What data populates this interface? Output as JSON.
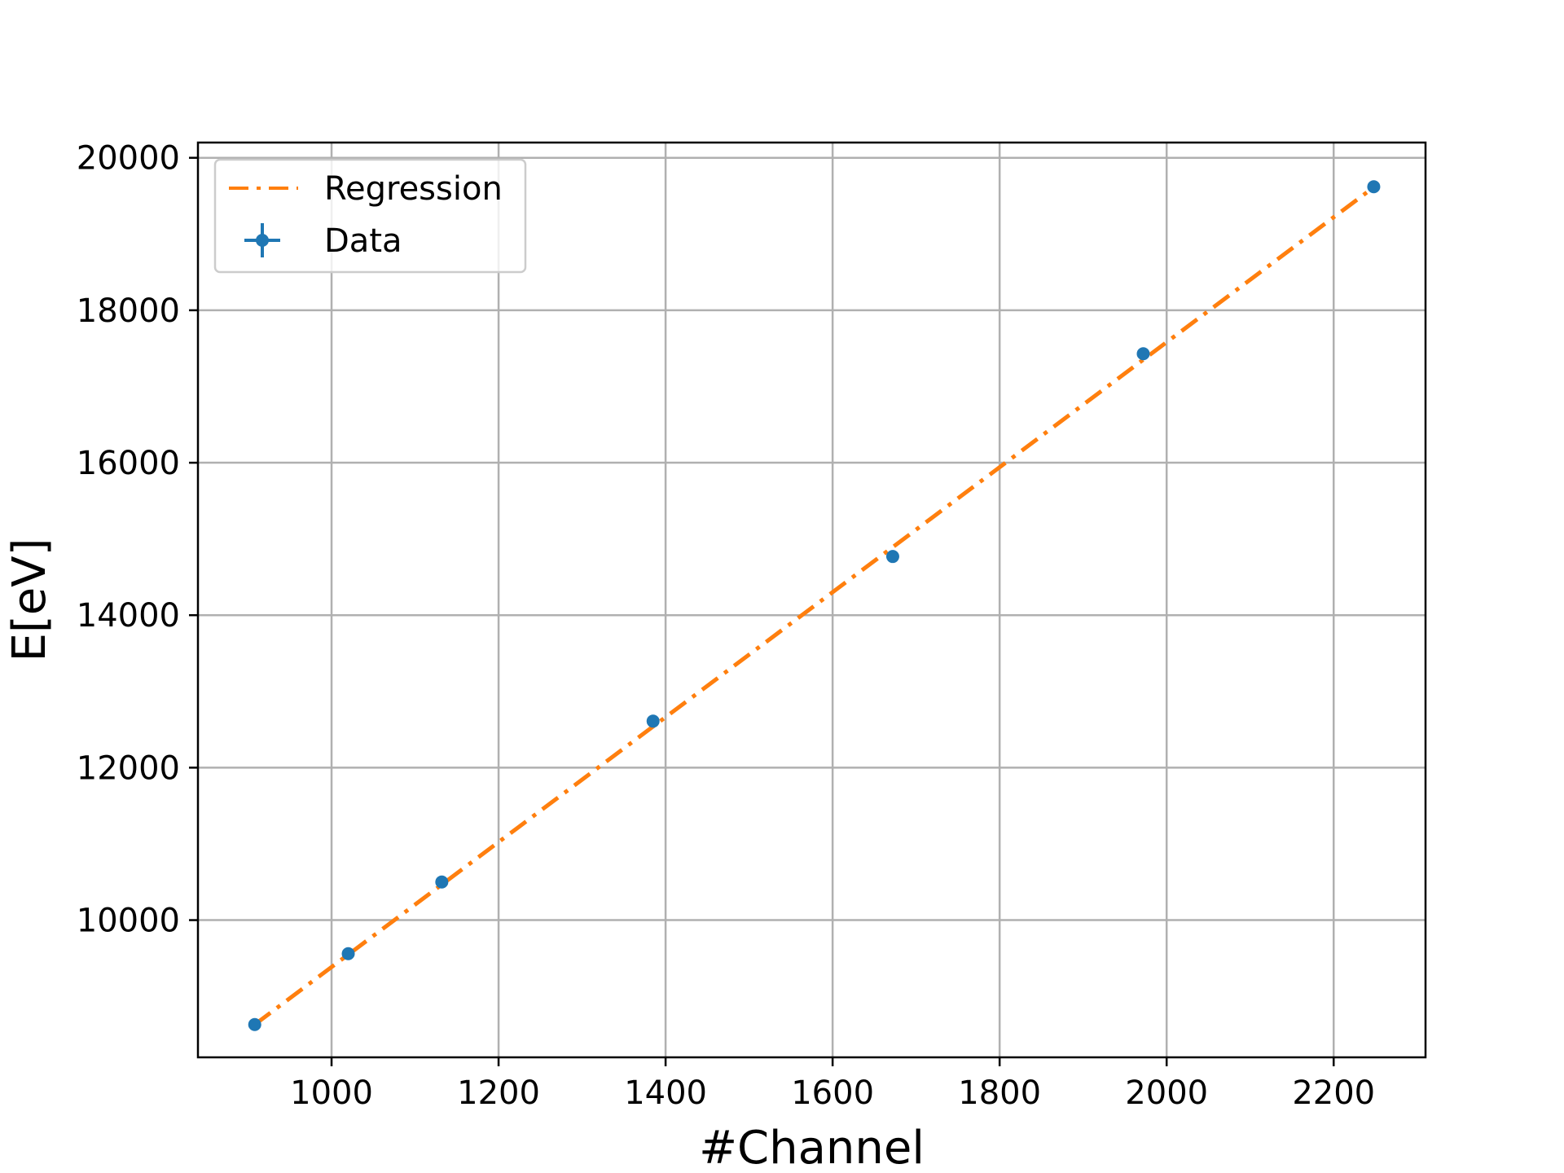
{
  "chart_data": {
    "type": "scatter",
    "xlabel": "#Channel",
    "ylabel": "E[eV]",
    "xlim": [
      840,
      2310
    ],
    "ylim": [
      8200,
      20200
    ],
    "x_ticks": [
      1000,
      1200,
      1400,
      1600,
      1800,
      2000,
      2200
    ],
    "y_ticks": [
      10000,
      12000,
      14000,
      16000,
      18000,
      20000
    ],
    "grid": true,
    "legend_position": "top-left",
    "series": [
      {
        "name": "Regression",
        "type": "line",
        "style": "dash-dot",
        "color": "#ff7f0e",
        "x": [
          908,
          2250
        ],
        "y": [
          8630,
          19630
        ]
      },
      {
        "name": "Data",
        "type": "scatter",
        "color": "#1f77b4",
        "x": [
          908,
          1020,
          1132,
          1385,
          1672,
          1972,
          2248
        ],
        "y": [
          8630,
          9560,
          10500,
          12610,
          14770,
          17430,
          19620
        ]
      }
    ]
  }
}
